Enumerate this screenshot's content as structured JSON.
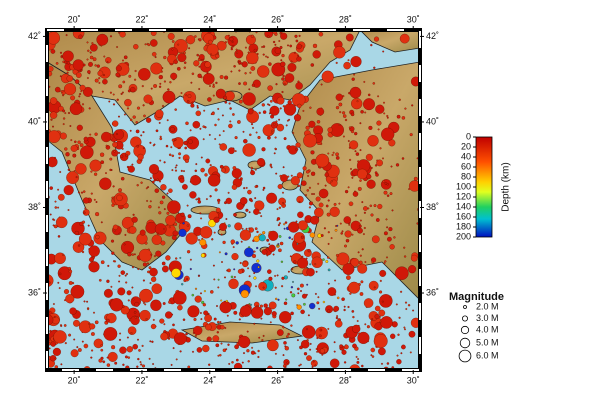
{
  "map": {
    "lonlim": [
      19.2,
      30.2
    ],
    "latlim": [
      34.2,
      42.15
    ],
    "lon_ticks": [
      {
        "value": 20,
        "label": "20˚"
      },
      {
        "value": 22,
        "label": "22˚"
      },
      {
        "value": 24,
        "label": "24˚"
      },
      {
        "value": 26,
        "label": "26˚"
      },
      {
        "value": 28,
        "label": "28˚"
      },
      {
        "value": 30,
        "label": "30˚"
      }
    ],
    "lat_ticks": [
      {
        "value": 36,
        "label": "36˚"
      },
      {
        "value": 38,
        "label": "38˚"
      },
      {
        "value": 40,
        "label": "40˚"
      },
      {
        "value": 42,
        "label": "42˚"
      }
    ]
  },
  "colorbar": {
    "title": "Depth (km)",
    "lim": [
      0,
      200
    ],
    "ticks": [
      0,
      20,
      40,
      60,
      80,
      100,
      120,
      140,
      160,
      180,
      200
    ]
  },
  "magnitude_legend": {
    "title": "Magnitude",
    "entries": [
      {
        "value": 2,
        "label": "2.0 M"
      },
      {
        "value": 3,
        "label": "3.0 M"
      },
      {
        "value": 4,
        "label": "4.0 M"
      },
      {
        "value": 5,
        "label": "5.0 M"
      },
      {
        "value": 6,
        "label": "6.0 M"
      }
    ]
  }
}
